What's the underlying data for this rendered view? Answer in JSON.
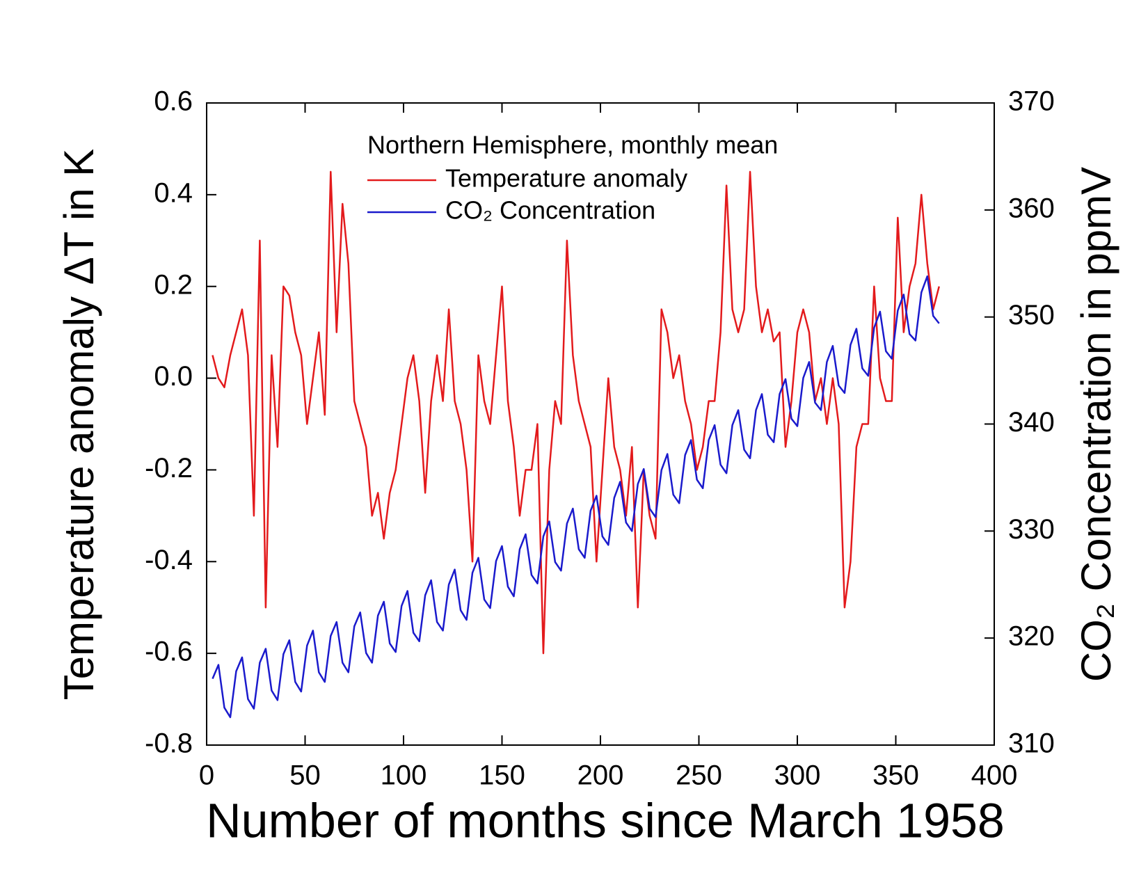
{
  "chart_data": {
    "type": "line",
    "legend_title": "Northern Hemisphere, monthly mean",
    "xlabel": "Number of months since March 1958",
    "ylabel": "Temperature anomaly ΔT in K",
    "y2label": "CO₂ Concentration in ppmV",
    "xlim": [
      0,
      400
    ],
    "xticks": [
      0,
      50,
      100,
      150,
      200,
      250,
      300,
      350,
      400
    ],
    "ylim": [
      -0.8,
      0.6
    ],
    "yticks": [
      0.6,
      0.4,
      0.2,
      {
        "value": 0,
        "label": "0.0"
      },
      -0.2,
      -0.4,
      -0.6,
      -0.8
    ],
    "y2lim": [
      310,
      370
    ],
    "y2ticks": [
      310,
      320,
      330,
      340,
      350,
      360,
      370
    ],
    "legend": "upper center",
    "x": [
      3,
      6,
      9,
      12,
      15,
      18,
      21,
      24,
      27,
      30,
      33,
      36,
      39,
      42,
      45,
      48,
      51,
      54,
      57,
      60,
      63,
      66,
      69,
      72,
      75,
      78,
      81,
      84,
      87,
      90,
      93,
      96,
      99,
      102,
      105,
      108,
      111,
      114,
      117,
      120,
      123,
      126,
      129,
      132,
      135,
      138,
      141,
      144,
      147,
      150,
      153,
      156,
      159,
      162,
      165,
      168,
      171,
      174,
      177,
      180,
      183,
      186,
      189,
      192,
      195,
      198,
      201,
      204,
      207,
      210,
      213,
      216,
      219,
      222,
      225,
      228,
      231,
      234,
      237,
      240,
      243,
      246,
      249,
      252,
      255,
      258,
      261,
      264,
      267,
      270,
      273,
      276,
      279,
      282,
      285,
      288,
      291,
      294,
      297,
      300,
      303,
      306,
      309,
      312,
      315,
      318,
      321,
      324,
      327,
      330,
      333,
      336,
      339,
      342,
      345,
      348,
      351,
      354,
      357,
      360,
      363,
      366,
      369,
      372
    ],
    "series": [
      {
        "name": "Temperature anomaly",
        "color": "#e31a1c",
        "values": [
          0.05,
          0.0,
          -0.02,
          0.05,
          0.1,
          0.15,
          0.05,
          -0.3,
          0.3,
          -0.5,
          0.05,
          -0.15,
          0.2,
          0.18,
          0.1,
          0.05,
          -0.1,
          0.0,
          0.1,
          -0.08,
          0.45,
          0.1,
          0.38,
          0.25,
          -0.05,
          -0.1,
          -0.15,
          -0.3,
          -0.25,
          -0.35,
          -0.25,
          -0.2,
          -0.1,
          0.0,
          0.05,
          -0.05,
          -0.25,
          -0.05,
          0.05,
          -0.05,
          0.15,
          -0.05,
          -0.1,
          -0.2,
          -0.4,
          0.05,
          -0.05,
          -0.1,
          0.05,
          0.2,
          -0.05,
          -0.15,
          -0.3,
          -0.2,
          -0.2,
          -0.1,
          -0.6,
          -0.2,
          -0.05,
          -0.1,
          0.3,
          0.05,
          -0.05,
          -0.1,
          -0.15,
          -0.4,
          -0.2,
          0.0,
          -0.15,
          -0.2,
          -0.3,
          -0.15,
          -0.5,
          -0.2,
          -0.3,
          -0.35,
          0.15,
          0.1,
          0.0,
          0.05,
          -0.05,
          -0.1,
          -0.2,
          -0.15,
          -0.05,
          -0.05,
          0.1,
          0.42,
          0.15,
          0.1,
          0.15,
          0.45,
          0.2,
          0.1,
          0.15,
          0.08,
          0.1,
          -0.15,
          -0.05,
          0.1,
          0.15,
          0.1,
          -0.05,
          0.0,
          -0.1,
          0.0,
          -0.1,
          -0.5,
          -0.4,
          -0.15,
          -0.1,
          -0.1,
          0.2,
          0.0,
          -0.05,
          -0.05,
          0.35,
          0.1,
          0.2,
          0.25,
          0.4,
          0.25,
          0.15,
          0.2
        ]
      },
      {
        "name": "CO₂ Concentration",
        "color": "#1a1acc",
        "axis": "y2",
        "values": [
          316.2,
          317.5,
          313.5,
          312.6,
          316.9,
          318.2,
          314.3,
          313.4,
          317.7,
          319.0,
          315.1,
          314.2,
          318.5,
          319.8,
          315.9,
          315.0,
          319.3,
          320.7,
          316.8,
          315.9,
          320.2,
          321.5,
          317.7,
          316.8,
          321.1,
          322.4,
          318.6,
          317.7,
          322.1,
          323.4,
          319.5,
          318.7,
          323.0,
          324.4,
          320.5,
          319.7,
          324.0,
          325.4,
          321.5,
          320.7,
          325.0,
          326.4,
          322.6,
          321.7,
          326.1,
          327.5,
          323.6,
          322.8,
          327.2,
          328.6,
          324.8,
          323.9,
          328.3,
          329.7,
          325.9,
          325.1,
          329.5,
          330.9,
          327.1,
          326.3,
          330.7,
          332.1,
          328.3,
          327.5,
          331.9,
          333.3,
          329.5,
          328.7,
          333.1,
          334.6,
          330.8,
          330.0,
          334.4,
          335.8,
          332.1,
          331.3,
          335.7,
          337.2,
          333.4,
          332.6,
          337.1,
          338.5,
          334.8,
          334.0,
          338.5,
          339.9,
          336.2,
          335.4,
          339.9,
          341.3,
          337.6,
          336.8,
          341.3,
          342.8,
          339.0,
          338.3,
          342.8,
          344.2,
          340.5,
          339.8,
          344.3,
          345.8,
          342.0,
          341.3,
          345.8,
          347.3,
          343.6,
          342.9,
          347.4,
          348.9,
          345.2,
          344.5,
          349.0,
          350.5,
          346.8,
          346.1,
          350.6,
          352.1,
          348.4,
          347.8,
          352.3,
          353.8,
          350.1,
          349.4
        ]
      }
    ]
  }
}
